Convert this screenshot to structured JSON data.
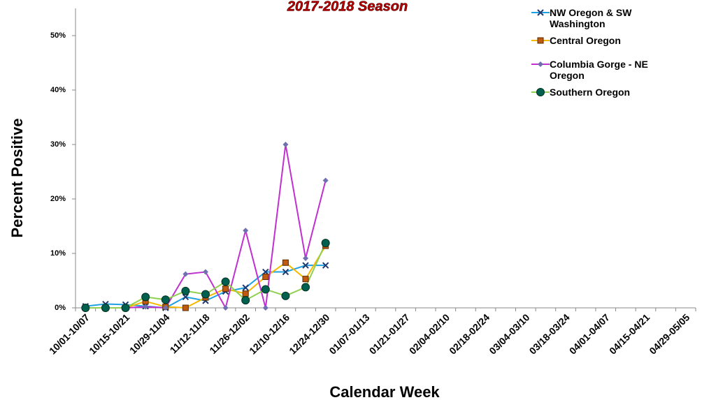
{
  "chart_data": {
    "type": "line",
    "title": "2017-2018 Season",
    "x_label": "Calendar Week",
    "y_label": "Percent Positive",
    "categories": [
      "10/01-10/07",
      null,
      "10/15-10/21",
      null,
      "10/29-11/04",
      null,
      "11/12-11/18",
      null,
      "11/26-12/02",
      null,
      "12/10-12/16",
      null,
      "12/24-12/30",
      null,
      "01/07-01/13",
      null,
      "01/21-01/27",
      null,
      "02/04-02/10",
      null,
      "02/18-02/24",
      null,
      "03/04-03/10",
      null,
      "03/18-03/24",
      null,
      "04/01-04/07",
      null,
      "04/15-04/21",
      null,
      "04/29-05/05"
    ],
    "series": [
      {
        "name": "NW Oregon & SW Washington",
        "color": "#1fa0e0",
        "marker": "cross",
        "marker_color": "#1f3a70",
        "values": [
          0.3,
          0.7,
          0.6,
          0.3,
          0.0,
          2.0,
          1.3,
          3.0,
          3.7,
          6.6,
          6.6,
          7.8,
          7.8,
          null,
          null,
          null,
          null,
          null,
          null,
          null,
          null,
          null,
          null,
          null,
          null,
          null,
          null,
          null,
          null,
          null,
          null
        ]
      },
      {
        "name": "Central Oregon",
        "color": "#f5b800",
        "marker": "square",
        "marker_color": "#c05a10",
        "values": [
          0.0,
          0.0,
          0.0,
          1.2,
          0.2,
          0.0,
          1.9,
          3.5,
          2.6,
          5.7,
          8.3,
          5.3,
          11.4,
          null,
          null,
          null,
          null,
          null,
          null,
          null,
          null,
          null,
          null,
          null,
          null,
          null,
          null,
          null,
          null,
          null,
          null
        ]
      },
      {
        "name": "Columbia Gorge - NE Oregon",
        "color": "#c030d0",
        "marker": "diamond",
        "marker_color": "#7070b0",
        "values": [
          0.0,
          0.0,
          0.0,
          0.2,
          0.0,
          6.2,
          6.6,
          0.0,
          14.2,
          0.0,
          30.0,
          9.1,
          23.4,
          null,
          null,
          null,
          null,
          null,
          null,
          null,
          null,
          null,
          null,
          null,
          null,
          null,
          null,
          null,
          null,
          null,
          null
        ]
      },
      {
        "name": "Southern Oregon",
        "color": "#90d050",
        "marker": "circle",
        "marker_color": "#006050",
        "values": [
          0.0,
          0.0,
          0.0,
          2.0,
          1.5,
          3.1,
          2.5,
          4.8,
          1.4,
          3.4,
          2.2,
          3.8,
          11.9,
          null,
          null,
          null,
          null,
          null,
          null,
          null,
          null,
          null,
          null,
          null,
          null,
          null,
          null,
          null,
          null,
          null,
          null
        ]
      }
    ],
    "ylim": [
      0,
      55
    ],
    "yticks": [
      {
        "value": 0,
        "label": "0%"
      },
      {
        "value": 10,
        "label": "10%"
      },
      {
        "value": 20,
        "label": "20%"
      },
      {
        "value": 30,
        "label": "30%"
      },
      {
        "value": 40,
        "label": "40%"
      },
      {
        "value": 50,
        "label": "50%"
      }
    ],
    "legend": "top-right"
  }
}
